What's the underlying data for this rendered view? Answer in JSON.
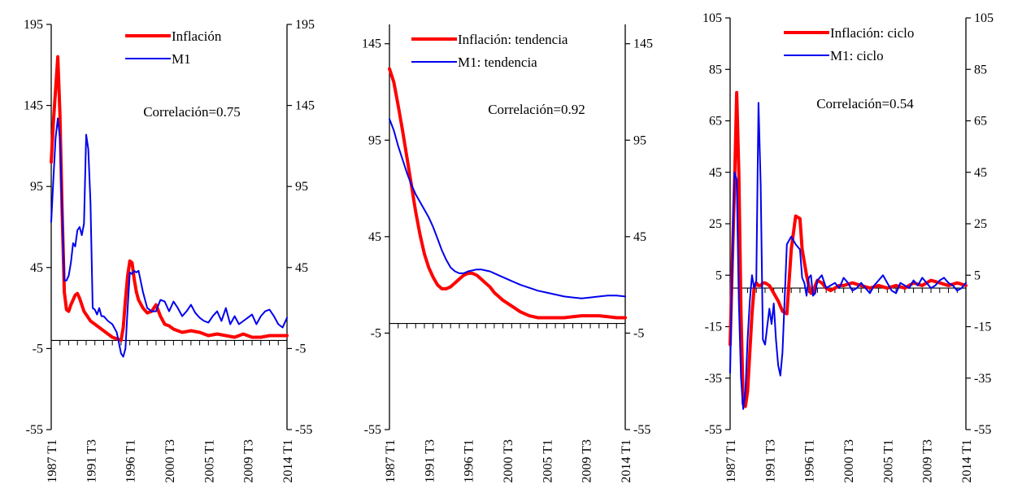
{
  "chart_data": [
    {
      "type": "line",
      "ylim": [
        -55,
        195
      ],
      "yticks": [
        "195",
        "145",
        "95",
        "45",
        "-5",
        "-55"
      ],
      "ytick_values": [
        195,
        145,
        95,
        45,
        -5,
        -55
      ],
      "x_range": [
        1987.0,
        2014.0
      ],
      "xtick_labels": [
        "1987 T1",
        "1991 T3",
        "1996 T1",
        "2000 T3",
        "2005 T1",
        "2009 T3",
        "2014 T1"
      ],
      "xtick_values": [
        1987.0,
        1991.5,
        1996.0,
        2000.5,
        2005.0,
        2009.5,
        2014.0
      ],
      "zero_line": 0,
      "annotation": "Correlación=0.75",
      "legend_position": "top-right",
      "series": [
        {
          "name": "Inflación",
          "color": "#ff0000",
          "x": [
            1987.0,
            1987.25,
            1987.5,
            1987.75,
            1988.0,
            1988.25,
            1988.5,
            1988.75,
            1989.0,
            1989.25,
            1989.5,
            1989.75,
            1990.0,
            1990.25,
            1990.5,
            1990.75,
            1991.0,
            1991.5,
            1992.0,
            1992.5,
            1993.0,
            1993.5,
            1994.0,
            1994.5,
            1995.0,
            1995.25,
            1995.5,
            1995.75,
            1996.0,
            1996.25,
            1996.5,
            1996.75,
            1997.0,
            1997.5,
            1998.0,
            1998.5,
            1999.0,
            1999.5,
            2000.0,
            2000.5,
            2001.0,
            2002.0,
            2003.0,
            2004.0,
            2005.0,
            2006.0,
            2007.0,
            2008.0,
            2009.0,
            2010.0,
            2011.0,
            2012.0,
            2013.0,
            2014.0
          ],
          "y": [
            110,
            135,
            155,
            175,
            140,
            80,
            30,
            19,
            18,
            22,
            25,
            28,
            29,
            26,
            22,
            18,
            16,
            12,
            10,
            8,
            6,
            4,
            2,
            1,
            0,
            8,
            25,
            40,
            49,
            48,
            38,
            30,
            25,
            20,
            17,
            18,
            22,
            15,
            10,
            9,
            7,
            5,
            6,
            5,
            3,
            4,
            3,
            2,
            4,
            2,
            2,
            3,
            3,
            3
          ]
        },
        {
          "name": "M1",
          "color": "#0000ee",
          "x": [
            1987.0,
            1987.25,
            1987.5,
            1987.75,
            1988.0,
            1988.25,
            1988.5,
            1988.75,
            1989.0,
            1989.25,
            1989.5,
            1989.75,
            1990.0,
            1990.25,
            1990.5,
            1990.75,
            1991.0,
            1991.25,
            1991.5,
            1991.75,
            1992.0,
            1992.25,
            1992.5,
            1992.75,
            1993.0,
            1993.5,
            1994.0,
            1994.5,
            1995.0,
            1995.25,
            1995.5,
            1995.75,
            1996.0,
            1996.25,
            1996.5,
            1996.75,
            1997.0,
            1997.5,
            1998.0,
            1998.5,
            1999.0,
            1999.5,
            2000.0,
            2000.5,
            2001.0,
            2001.5,
            2002.0,
            2002.5,
            2003.0,
            2003.5,
            2004.0,
            2004.5,
            2005.0,
            2005.5,
            2006.0,
            2006.5,
            2007.0,
            2007.5,
            2008.0,
            2008.5,
            2009.0,
            2009.5,
            2010.0,
            2010.5,
            2011.0,
            2011.5,
            2012.0,
            2012.5,
            2013.0,
            2013.5,
            2014.0
          ],
          "y": [
            73,
            100,
            125,
            137,
            125,
            80,
            37,
            37,
            40,
            48,
            60,
            58,
            68,
            70,
            65,
            72,
            127,
            118,
            85,
            20,
            19,
            16,
            20,
            15,
            15,
            12,
            10,
            5,
            -8,
            -10,
            -5,
            20,
            42,
            41,
            43,
            42,
            43,
            30,
            20,
            18,
            18,
            25,
            24,
            18,
            24,
            20,
            15,
            18,
            22,
            17,
            14,
            12,
            11,
            15,
            18,
            12,
            20,
            10,
            15,
            10,
            12,
            14,
            16,
            10,
            15,
            18,
            19,
            15,
            10,
            8,
            14
          ]
        }
      ]
    },
    {
      "type": "line",
      "ylim": [
        -55,
        155
      ],
      "yticks": [
        "145",
        "95",
        "45",
        "-5",
        "-55"
      ],
      "ytick_values": [
        145,
        95,
        45,
        -5,
        -55
      ],
      "x_range": [
        1987.0,
        2014.0
      ],
      "xtick_labels": [
        "1987 T1",
        "1991 T3",
        "1996 T1",
        "2000 T3",
        "2005 T1",
        "2009 T3",
        "2014 T1"
      ],
      "xtick_values": [
        1987.0,
        1991.5,
        1996.0,
        2000.5,
        2005.0,
        2009.5,
        2014.0
      ],
      "zero_line": 0,
      "annotation": "Correlación=0.92",
      "legend_position": "top-right",
      "series": [
        {
          "name": "Inflación: tendencia",
          "color": "#ff0000",
          "x": [
            1987.0,
            1987.5,
            1988.0,
            1988.5,
            1989.0,
            1989.5,
            1990.0,
            1990.5,
            1991.0,
            1991.5,
            1992.0,
            1992.5,
            1993.0,
            1993.5,
            1994.0,
            1994.5,
            1995.0,
            1995.5,
            1996.0,
            1996.5,
            1997.0,
            1997.5,
            1998.0,
            1998.5,
            1999.0,
            1999.5,
            2000.0,
            2001.0,
            2002.0,
            2003.0,
            2004.0,
            2005.0,
            2006.0,
            2007.0,
            2008.0,
            2009.0,
            2010.0,
            2011.0,
            2012.0,
            2013.0,
            2014.0
          ],
          "y": [
            132,
            125,
            113,
            100,
            86,
            72,
            58,
            46,
            36,
            29,
            24,
            20,
            18,
            18,
            19,
            21,
            23,
            25,
            26,
            26,
            25,
            23,
            21,
            19,
            16,
            14,
            12,
            9,
            6,
            4,
            3,
            3,
            3,
            3,
            3.5,
            4,
            4,
            4,
            3.5,
            3,
            3
          ]
        },
        {
          "name": "M1: tendencia",
          "color": "#0000ee",
          "x": [
            1987.0,
            1987.5,
            1988.0,
            1988.5,
            1989.0,
            1989.5,
            1990.0,
            1990.5,
            1991.0,
            1991.5,
            1992.0,
            1992.5,
            1993.0,
            1993.5,
            1994.0,
            1994.5,
            1995.0,
            1995.5,
            1996.0,
            1996.5,
            1997.0,
            1997.5,
            1998.0,
            1998.5,
            1999.0,
            2000.0,
            2001.0,
            2002.0,
            2003.0,
            2004.0,
            2005.0,
            2006.0,
            2007.0,
            2008.0,
            2009.0,
            2010.0,
            2011.0,
            2012.0,
            2013.0,
            2014.0
          ],
          "y": [
            106,
            100,
            92,
            85,
            78,
            72,
            67,
            63,
            59,
            55,
            50,
            44,
            38,
            33,
            29,
            27,
            26,
            26,
            27,
            27.5,
            28,
            28,
            27.5,
            27,
            26,
            24,
            22,
            20,
            18.5,
            17,
            16,
            15,
            14,
            13.5,
            13,
            13.5,
            14,
            14.5,
            14.5,
            14
          ]
        }
      ]
    },
    {
      "type": "line",
      "ylim": [
        -55,
        105
      ],
      "yticks": [
        "105",
        "85",
        "65",
        "45",
        "25",
        "5",
        "-15",
        "-35",
        "-55"
      ],
      "ytick_values": [
        105,
        85,
        65,
        45,
        25,
        5,
        -15,
        -35,
        -55
      ],
      "x_range": [
        1987.0,
        2014.0
      ],
      "xtick_labels": [
        "1987 T1",
        "1991 T3",
        "1996 T1",
        "2000 T3",
        "2005 T1",
        "2009 T3",
        "2014 T1"
      ],
      "xtick_values": [
        1987.0,
        1991.5,
        1996.0,
        2000.5,
        2005.0,
        2009.5,
        2014.0
      ],
      "zero_line": 0,
      "annotation": "Correlación=0.54",
      "legend_position": "top-right",
      "series": [
        {
          "name": "Inflación: ciclo",
          "color": "#ff0000",
          "x": [
            1987.0,
            1987.25,
            1987.5,
            1987.75,
            1988.0,
            1988.25,
            1988.5,
            1988.75,
            1989.0,
            1989.25,
            1989.5,
            1989.75,
            1990.0,
            1990.25,
            1990.5,
            1990.75,
            1991.0,
            1991.5,
            1992.0,
            1992.5,
            1993.0,
            1993.5,
            1994.0,
            1994.5,
            1995.0,
            1995.25,
            1995.5,
            1995.75,
            1996.0,
            1996.25,
            1996.5,
            1996.75,
            1997.0,
            1997.5,
            1998.0,
            1998.5,
            1999.0,
            1999.5,
            2000.0,
            2001.0,
            2002.0,
            2003.0,
            2004.0,
            2005.0,
            2006.0,
            2007.0,
            2008.0,
            2009.0,
            2010.0,
            2011.0,
            2012.0,
            2013.0,
            2014.0
          ],
          "y": [
            -22,
            10,
            40,
            76,
            45,
            -10,
            -45,
            -46,
            -40,
            -25,
            -10,
            0,
            2,
            1,
            1,
            2,
            2,
            1,
            -2,
            -5,
            -9,
            -10,
            15,
            28,
            27,
            15,
            10,
            5,
            1,
            -2,
            -2,
            1,
            3,
            2,
            0,
            -1,
            0,
            1,
            1,
            2,
            1,
            0,
            1,
            0,
            1,
            0,
            2,
            1,
            3,
            2,
            1,
            2,
            1
          ]
        },
        {
          "name": "M1: ciclo",
          "color": "#0000ee",
          "x": [
            1987.0,
            1987.25,
            1987.5,
            1987.75,
            1988.0,
            1988.25,
            1988.5,
            1988.75,
            1989.0,
            1989.25,
            1989.5,
            1989.75,
            1990.0,
            1990.25,
            1990.5,
            1990.75,
            1991.0,
            1991.25,
            1991.5,
            1991.75,
            1992.0,
            1992.25,
            1992.5,
            1992.75,
            1993.0,
            1993.5,
            1994.0,
            1994.5,
            1995.0,
            1995.25,
            1995.5,
            1995.75,
            1996.0,
            1996.25,
            1996.5,
            1996.75,
            1997.0,
            1997.5,
            1998.0,
            1998.5,
            1999.0,
            1999.5,
            2000.0,
            2000.5,
            2001.0,
            2001.5,
            2002.0,
            2002.5,
            2003.0,
            2003.5,
            2004.0,
            2004.5,
            2005.0,
            2005.5,
            2006.0,
            2006.5,
            2007.0,
            2007.5,
            2008.0,
            2008.5,
            2009.0,
            2009.5,
            2010.0,
            2010.5,
            2011.0,
            2011.5,
            2012.0,
            2012.5,
            2013.0,
            2013.5,
            2014.0
          ],
          "y": [
            -33,
            10,
            45,
            42,
            -5,
            -35,
            -47,
            -40,
            -20,
            -5,
            5,
            0,
            3,
            72,
            40,
            -20,
            -22,
            -15,
            -8,
            -14,
            -6,
            -20,
            -30,
            -34,
            -25,
            17,
            20,
            17,
            15,
            4,
            2,
            -3,
            4,
            5,
            -3,
            -2,
            3,
            5,
            0,
            1,
            2,
            0,
            4,
            2,
            -1,
            0,
            2,
            0,
            -2,
            1,
            3,
            5,
            2,
            -1,
            -2,
            2,
            1,
            0,
            3,
            1,
            4,
            2,
            0,
            1,
            3,
            4,
            2,
            1,
            -1,
            0,
            2
          ]
        }
      ]
    }
  ]
}
